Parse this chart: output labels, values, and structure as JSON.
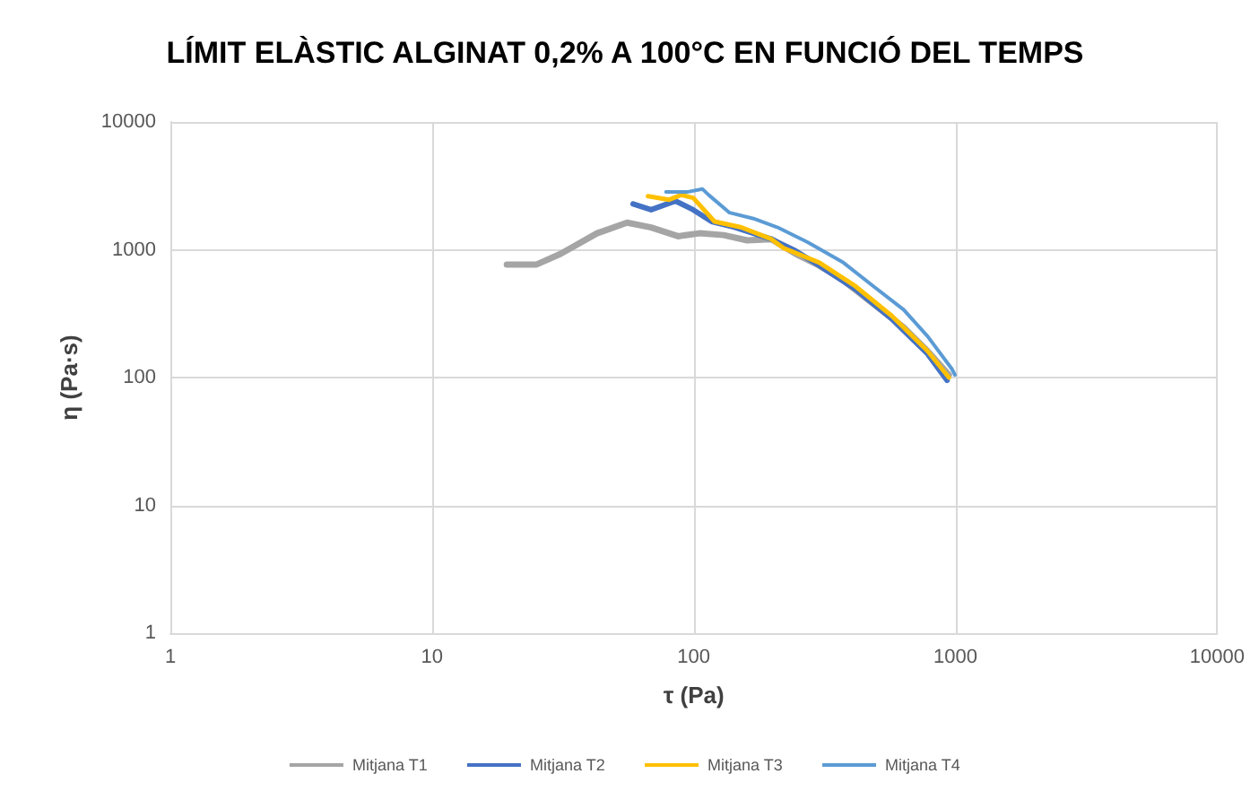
{
  "chart_data": {
    "type": "line",
    "title": "LÍMIT ELÀSTIC ALGINAT 0,2% A 100°C EN FUNCIÓ DEL TEMPS",
    "xlabel": "τ (Pa)",
    "ylabel": "η (Pa·s)",
    "log": "xy",
    "xlim": [
      1,
      10000
    ],
    "ylim": [
      1,
      10000
    ],
    "xticks": [
      1,
      10,
      100,
      1000,
      10000
    ],
    "yticks": [
      1,
      10,
      100,
      1000,
      10000
    ],
    "grid": true,
    "legend": "bottom",
    "marker": "none",
    "line_style": "solid",
    "series": [
      {
        "name": "Mitjana T1",
        "color": "#a5a5a5",
        "x": [
          19.3,
          25.1,
          31,
          42.7,
          55.6,
          68.7,
          87.1,
          105,
          130,
          160,
          198,
          245,
          302,
          373,
          486,
          634,
          783,
          944
        ],
        "values": [
          767,
          767,
          929,
          1346,
          1629,
          1496,
          1276,
          1346,
          1303,
          1185,
          1211,
          929,
          751,
          576,
          377,
          247,
          161,
          105
        ]
      },
      {
        "name": "Mitjana T2",
        "color": "#4472c4",
        "x": [
          58.6,
          68.7,
          85,
          99.5,
          117,
          144,
          198,
          245,
          302,
          415,
          570,
          783,
          929
        ],
        "values": [
          2286,
          2055,
          2410,
          2055,
          1664,
          1497,
          1211,
          980,
          751,
          491,
          289,
          153,
          95
        ]
      },
      {
        "name": "Mitjana T3",
        "color": "#ffc000",
        "x": [
          66.8,
          80.5,
          89.5,
          99.5,
          120,
          152,
          198,
          220,
          302,
          415,
          570,
          783,
          944
        ],
        "values": [
          2624,
          2465,
          2685,
          2547,
          1664,
          1497,
          1211,
          1032,
          793,
          518,
          305,
          161,
          100
        ]
      },
      {
        "name": "Mitjana T4",
        "color": "#5b9bd5",
        "x": [
          78.3,
          94.3,
          108,
          114,
          137,
          169,
          209,
          272,
          373,
          486,
          634,
          783,
          968,
          995
        ],
        "values": [
          2831,
          2831,
          2985,
          2685,
          1950,
          1754,
          1497,
          1148,
          793,
          518,
          339,
          210,
          117,
          105
        ]
      }
    ]
  }
}
